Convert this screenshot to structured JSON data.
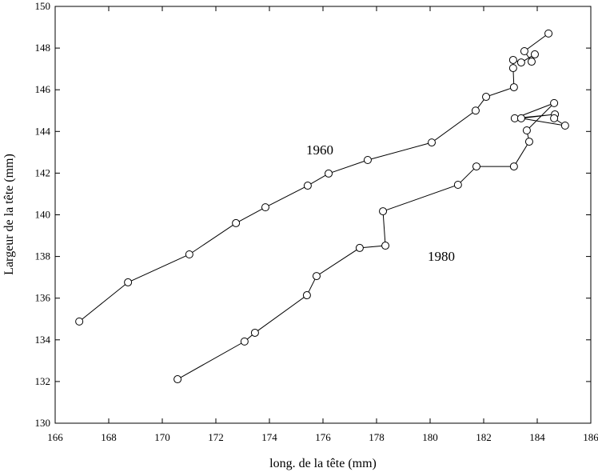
{
  "chart_data": {
    "type": "line",
    "x_label": "long. de la tête (mm)",
    "y_label": "Largeur de la tête (mm)",
    "xlim": [
      166,
      186
    ],
    "xticks": [
      166,
      168,
      170,
      172,
      174,
      176,
      178,
      180,
      182,
      184,
      186
    ],
    "ylim": [
      130,
      150
    ],
    "yticks": [
      130,
      132,
      134,
      136,
      138,
      140,
      142,
      144,
      146,
      148,
      150
    ],
    "series": [
      {
        "name": "1960",
        "color": "#000000",
        "x": [
          166.9,
          168.72,
          171.01,
          172.75,
          173.85,
          175.43,
          176.21,
          177.67,
          180.06,
          181.7,
          182.09,
          183.13,
          183.1,
          183.1,
          183.4,
          183.91,
          183.79,
          183.52,
          184.42
        ],
        "values": [
          134.88,
          136.76,
          138.1,
          139.6,
          140.36,
          141.4,
          141.98,
          142.63,
          143.47,
          145.0,
          145.66,
          146.12,
          147.04,
          147.43,
          147.31,
          147.7,
          147.35,
          147.85,
          148.7
        ]
      },
      {
        "name": "1980",
        "color": "#000000",
        "x": [
          170.57,
          173.07,
          173.46,
          175.4,
          175.76,
          177.37,
          178.33,
          178.24,
          181.04,
          181.73,
          183.13,
          183.7,
          183.61,
          184.63,
          183.16,
          184.66,
          183.4,
          185.04,
          184.63
        ],
        "values": [
          132.11,
          133.92,
          134.34,
          136.14,
          137.06,
          138.41,
          138.52,
          140.17,
          141.44,
          142.32,
          142.32,
          143.51,
          144.05,
          145.36,
          144.63,
          144.82,
          144.63,
          144.28,
          144.63
        ]
      }
    ]
  }
}
